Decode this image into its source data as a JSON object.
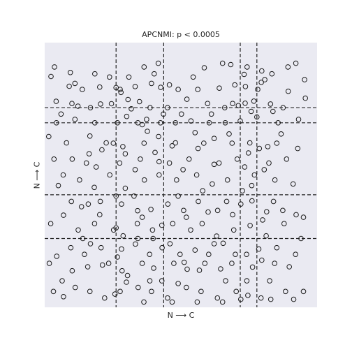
{
  "chart_data": {
    "type": "scatter",
    "title": "APCNMI: p < 0.0005",
    "xlabel": "N ⟶ C",
    "ylabel": "N ⟶ C",
    "xlim": [
      0,
      1
    ],
    "ylim": [
      0,
      1
    ],
    "grid": false,
    "ticks": "none",
    "background_color": "#eaeaf2",
    "marker": "open-circle",
    "marker_color": "#1a1a1a",
    "divider_color": "#222222",
    "divider_style": "dashed",
    "vertical_dividers_x": [
      0.262,
      0.437,
      0.718,
      0.779
    ],
    "horizontal_dividers_y": [
      0.754,
      0.697,
      0.425,
      0.26
    ],
    "points": [
      [
        0.036,
        0.908
      ],
      [
        0.094,
        0.887
      ],
      [
        0.184,
        0.882
      ],
      [
        0.238,
        0.87
      ],
      [
        0.309,
        0.87
      ],
      [
        0.402,
        0.882
      ],
      [
        0.365,
        0.908
      ],
      [
        0.417,
        0.922
      ],
      [
        0.545,
        0.87
      ],
      [
        0.586,
        0.905
      ],
      [
        0.653,
        0.922
      ],
      [
        0.683,
        0.917
      ],
      [
        0.743,
        0.908
      ],
      [
        0.797,
        0.893
      ],
      [
        0.834,
        0.882
      ],
      [
        0.893,
        0.908
      ],
      [
        0.922,
        0.922
      ],
      [
        0.023,
        0.872
      ],
      [
        0.111,
        0.846
      ],
      [
        0.138,
        0.823
      ],
      [
        0.202,
        0.832
      ],
      [
        0.277,
        0.823
      ],
      [
        0.332,
        0.834
      ],
      [
        0.392,
        0.846
      ],
      [
        0.426,
        0.831
      ],
      [
        0.49,
        0.823
      ],
      [
        0.562,
        0.823
      ],
      [
        0.641,
        0.828
      ],
      [
        0.737,
        0.834
      ],
      [
        0.782,
        0.823
      ],
      [
        0.808,
        0.86
      ],
      [
        0.894,
        0.816
      ],
      [
        0.954,
        0.86
      ],
      [
        0.042,
        0.778
      ],
      [
        0.1,
        0.77
      ],
      [
        0.168,
        0.754
      ],
      [
        0.205,
        0.768
      ],
      [
        0.245,
        0.769
      ],
      [
        0.306,
        0.785
      ],
      [
        0.348,
        0.777
      ],
      [
        0.387,
        0.754
      ],
      [
        0.451,
        0.754
      ],
      [
        0.522,
        0.786
      ],
      [
        0.598,
        0.77
      ],
      [
        0.661,
        0.754
      ],
      [
        0.711,
        0.762
      ],
      [
        0.736,
        0.771
      ],
      [
        0.768,
        0.779
      ],
      [
        0.829,
        0.768
      ],
      [
        0.875,
        0.754
      ],
      [
        0.957,
        0.79
      ],
      [
        0.043,
        0.697
      ],
      [
        0.111,
        0.71
      ],
      [
        0.184,
        0.697
      ],
      [
        0.267,
        0.697
      ],
      [
        0.301,
        0.721
      ],
      [
        0.342,
        0.697
      ],
      [
        0.374,
        0.71
      ],
      [
        0.425,
        0.697
      ],
      [
        0.48,
        0.697
      ],
      [
        0.537,
        0.704
      ],
      [
        0.604,
        0.697
      ],
      [
        0.663,
        0.697
      ],
      [
        0.718,
        0.704
      ],
      [
        0.779,
        0.719
      ],
      [
        0.857,
        0.697
      ],
      [
        0.932,
        0.71
      ],
      [
        0.015,
        0.645
      ],
      [
        0.08,
        0.621
      ],
      [
        0.166,
        0.647
      ],
      [
        0.226,
        0.621
      ],
      [
        0.287,
        0.607
      ],
      [
        0.377,
        0.665
      ],
      [
        0.418,
        0.645
      ],
      [
        0.48,
        0.621
      ],
      [
        0.552,
        0.66
      ],
      [
        0.622,
        0.638
      ],
      [
        0.677,
        0.655
      ],
      [
        0.753,
        0.621
      ],
      [
        0.819,
        0.607
      ],
      [
        0.868,
        0.655
      ],
      [
        0.929,
        0.6
      ],
      [
        0.034,
        0.56
      ],
      [
        0.101,
        0.56
      ],
      [
        0.153,
        0.545
      ],
      [
        0.21,
        0.595
      ],
      [
        0.275,
        0.545
      ],
      [
        0.351,
        0.56
      ],
      [
        0.405,
        0.585
      ],
      [
        0.458,
        0.545
      ],
      [
        0.53,
        0.56
      ],
      [
        0.563,
        0.6
      ],
      [
        0.64,
        0.545
      ],
      [
        0.707,
        0.56
      ],
      [
        0.748,
        0.583
      ],
      [
        0.823,
        0.545
      ],
      [
        0.888,
        0.56
      ],
      [
        0.068,
        0.5
      ],
      [
        0.128,
        0.481
      ],
      [
        0.182,
        0.453
      ],
      [
        0.239,
        0.5
      ],
      [
        0.296,
        0.45
      ],
      [
        0.366,
        0.481
      ],
      [
        0.42,
        0.5
      ],
      [
        0.484,
        0.481
      ],
      [
        0.558,
        0.5
      ],
      [
        0.615,
        0.466
      ],
      [
        0.671,
        0.481
      ],
      [
        0.726,
        0.44
      ],
      [
        0.77,
        0.5
      ],
      [
        0.845,
        0.481
      ],
      [
        0.912,
        0.466
      ],
      [
        0.098,
        0.4
      ],
      [
        0.135,
        0.38
      ],
      [
        0.204,
        0.4
      ],
      [
        0.282,
        0.39
      ],
      [
        0.341,
        0.365
      ],
      [
        0.39,
        0.37
      ],
      [
        0.452,
        0.39
      ],
      [
        0.51,
        0.366
      ],
      [
        0.564,
        0.4
      ],
      [
        0.635,
        0.366
      ],
      [
        0.72,
        0.39
      ],
      [
        0.761,
        0.402
      ],
      [
        0.815,
        0.361
      ],
      [
        0.874,
        0.366
      ],
      [
        0.923,
        0.35
      ],
      [
        0.022,
        0.316
      ],
      [
        0.069,
        0.348
      ],
      [
        0.123,
        0.292
      ],
      [
        0.183,
        0.316
      ],
      [
        0.253,
        0.292
      ],
      [
        0.288,
        0.27
      ],
      [
        0.34,
        0.316
      ],
      [
        0.396,
        0.292
      ],
      [
        0.47,
        0.316
      ],
      [
        0.536,
        0.292
      ],
      [
        0.578,
        0.316
      ],
      [
        0.631,
        0.269
      ],
      [
        0.694,
        0.292
      ],
      [
        0.754,
        0.309
      ],
      [
        0.813,
        0.27
      ],
      [
        0.879,
        0.316
      ],
      [
        0.941,
        0.26
      ],
      [
        0.044,
        0.193
      ],
      [
        0.096,
        0.225
      ],
      [
        0.146,
        0.2
      ],
      [
        0.207,
        0.225
      ],
      [
        0.267,
        0.19
      ],
      [
        0.333,
        0.239
      ],
      [
        0.385,
        0.2
      ],
      [
        0.431,
        0.225
      ],
      [
        0.497,
        0.2
      ],
      [
        0.552,
        0.216
      ],
      [
        0.602,
        0.2
      ],
      [
        0.655,
        0.242
      ],
      [
        0.7,
        0.2
      ],
      [
        0.741,
        0.2
      ],
      [
        0.797,
        0.178
      ],
      [
        0.852,
        0.225
      ],
      [
        0.921,
        0.2
      ],
      [
        0.017,
        0.166
      ],
      [
        0.101,
        0.138
      ],
      [
        0.158,
        0.153
      ],
      [
        0.235,
        0.166
      ],
      [
        0.284,
        0.138
      ],
      [
        0.358,
        0.166
      ],
      [
        0.4,
        0.148
      ],
      [
        0.474,
        0.166
      ],
      [
        0.523,
        0.144
      ],
      [
        0.588,
        0.166
      ],
      [
        0.646,
        0.145
      ],
      [
        0.687,
        0.166
      ],
      [
        0.763,
        0.152
      ],
      [
        0.844,
        0.166
      ],
      [
        0.898,
        0.153
      ],
      [
        0.032,
        0.06
      ],
      [
        0.069,
        0.04
      ],
      [
        0.112,
        0.075
      ],
      [
        0.166,
        0.06
      ],
      [
        0.22,
        0.035
      ],
      [
        0.277,
        0.06
      ],
      [
        0.343,
        0.075
      ],
      [
        0.392,
        0.06
      ],
      [
        0.451,
        0.035
      ],
      [
        0.52,
        0.075
      ],
      [
        0.574,
        0.06
      ],
      [
        0.634,
        0.035
      ],
      [
        0.703,
        0.06
      ],
      [
        0.746,
        0.045
      ],
      [
        0.794,
        0.035
      ],
      [
        0.884,
        0.06
      ],
      [
        0.95,
        0.06
      ],
      [
        0.09,
        0.835
      ],
      [
        0.122,
        0.76
      ],
      [
        0.262,
        0.83
      ],
      [
        0.28,
        0.812
      ],
      [
        0.318,
        0.75
      ],
      [
        0.358,
        0.69
      ],
      [
        0.436,
        0.73
      ],
      [
        0.458,
        0.84
      ],
      [
        0.502,
        0.73
      ],
      [
        0.612,
        0.73
      ],
      [
        0.69,
        0.77
      ],
      [
        0.698,
        0.84
      ],
      [
        0.732,
        0.88
      ],
      [
        0.758,
        0.74
      ],
      [
        0.795,
        0.85
      ],
      [
        0.838,
        0.74
      ],
      [
        0.06,
        0.73
      ],
      [
        0.163,
        0.58
      ],
      [
        0.189,
        0.53
      ],
      [
        0.252,
        0.62
      ],
      [
        0.296,
        0.58
      ],
      [
        0.332,
        0.52
      ],
      [
        0.365,
        0.62
      ],
      [
        0.42,
        0.55
      ],
      [
        0.468,
        0.61
      ],
      [
        0.508,
        0.52
      ],
      [
        0.584,
        0.62
      ],
      [
        0.622,
        0.54
      ],
      [
        0.688,
        0.62
      ],
      [
        0.734,
        0.53
      ],
      [
        0.788,
        0.6
      ],
      [
        0.806,
        0.52
      ],
      [
        0.852,
        0.62
      ],
      [
        0.05,
        0.46
      ],
      [
        0.16,
        0.39
      ],
      [
        0.202,
        0.35
      ],
      [
        0.262,
        0.42
      ],
      [
        0.328,
        0.42
      ],
      [
        0.358,
        0.34
      ],
      [
        0.43,
        0.31
      ],
      [
        0.49,
        0.42
      ],
      [
        0.52,
        0.34
      ],
      [
        0.58,
        0.44
      ],
      [
        0.6,
        0.36
      ],
      [
        0.668,
        0.4
      ],
      [
        0.69,
        0.35
      ],
      [
        0.76,
        0.46
      ],
      [
        0.8,
        0.33
      ],
      [
        0.84,
        0.4
      ],
      [
        0.95,
        0.34
      ],
      [
        0.14,
        0.26
      ],
      [
        0.168,
        0.24
      ],
      [
        0.212,
        0.16
      ],
      [
        0.262,
        0.3
      ],
      [
        0.282,
        0.22
      ],
      [
        0.304,
        0.12
      ],
      [
        0.342,
        0.26
      ],
      [
        0.398,
        0.26
      ],
      [
        0.43,
        0.1
      ],
      [
        0.46,
        0.24
      ],
      [
        0.512,
        0.17
      ],
      [
        0.568,
        0.14
      ],
      [
        0.622,
        0.24
      ],
      [
        0.664,
        0.1
      ],
      [
        0.742,
        0.1
      ],
      [
        0.786,
        0.22
      ],
      [
        0.826,
        0.1
      ],
      [
        0.064,
        0.1
      ],
      [
        0.258,
        0.05
      ],
      [
        0.364,
        0.02
      ],
      [
        0.468,
        0.02
      ],
      [
        0.56,
        0.02
      ],
      [
        0.653,
        0.02
      ],
      [
        0.72,
        0.03
      ],
      [
        0.83,
        0.03
      ],
      [
        0.914,
        0.03
      ],
      [
        0.3,
        0.095
      ],
      [
        0.386,
        0.1
      ],
      [
        0.49,
        0.09
      ]
    ]
  }
}
